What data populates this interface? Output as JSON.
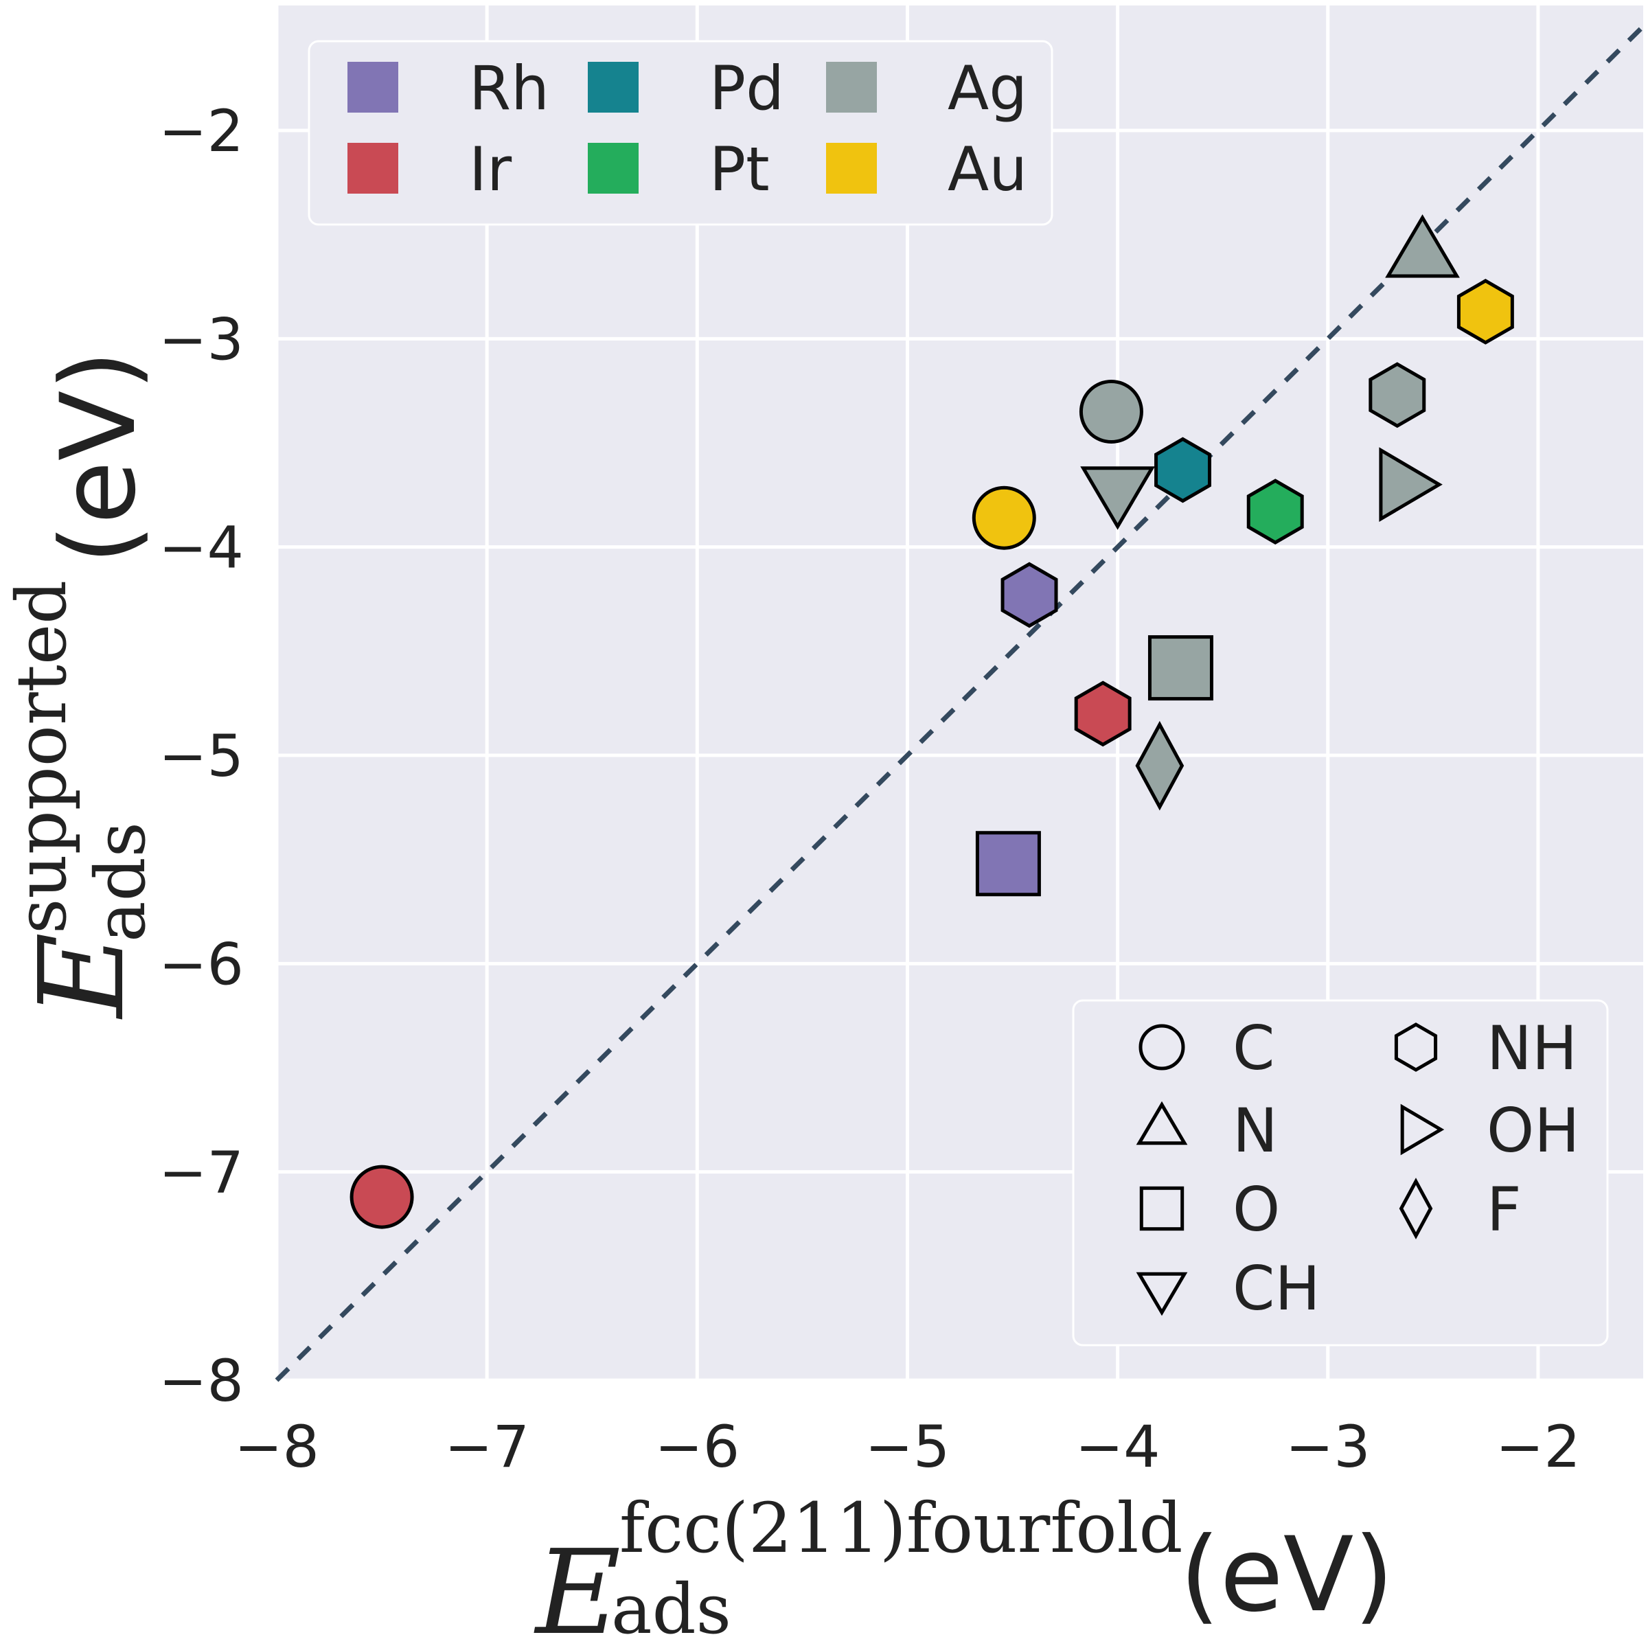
{
  "chart_data": {
    "type": "scatter",
    "x_axis": {
      "symbol": "E",
      "subscript": "ads",
      "superscript": "fcc(211)fourfold",
      "unit": "(eV)",
      "xlim": [
        -8,
        -1.5
      ],
      "ticks": [
        -8,
        -7,
        -6,
        -5,
        -4,
        -3,
        -2
      ],
      "tick_labels": [
        "−8",
        "−7",
        "−6",
        "−5",
        "−4",
        "−3",
        "−2"
      ]
    },
    "y_axis": {
      "symbol": "E",
      "subscript": "ads",
      "superscript": "supported",
      "unit": "(eV)",
      "ylim": [
        -8,
        -1.4
      ],
      "ticks": [
        -8,
        -7,
        -6,
        -5,
        -4,
        -3,
        -2
      ],
      "tick_labels": [
        "−8",
        "−7",
        "−6",
        "−5",
        "−4",
        "−3",
        "−2"
      ]
    },
    "grid": true,
    "parity_line": true,
    "metals": [
      {
        "name": "Rh",
        "color": "#8175b4"
      },
      {
        "name": "Ir",
        "color": "#c94a54"
      },
      {
        "name": "Pd",
        "color": "#15838f"
      },
      {
        "name": "Pt",
        "color": "#24ad5c"
      },
      {
        "name": "Ag",
        "color": "#97a5a3"
      },
      {
        "name": "Au",
        "color": "#f0c30f"
      }
    ],
    "adsorbates": [
      {
        "name": "C",
        "marker": "circle"
      },
      {
        "name": "N",
        "marker": "triangle-up"
      },
      {
        "name": "O",
        "marker": "square"
      },
      {
        "name": "CH",
        "marker": "triangle-down"
      },
      {
        "name": "NH",
        "marker": "hexagon"
      },
      {
        "name": "OH",
        "marker": "triangle-right"
      },
      {
        "name": "F",
        "marker": "diamond"
      }
    ],
    "points": [
      {
        "metal": "Ag",
        "adsorbate": "N",
        "x": -2.55,
        "y": -2.6
      },
      {
        "metal": "Au",
        "adsorbate": "NH",
        "x": -2.25,
        "y": -2.87
      },
      {
        "metal": "Ag",
        "adsorbate": "NH",
        "x": -2.67,
        "y": -3.27
      },
      {
        "metal": "Ag",
        "adsorbate": "OH",
        "x": -2.65,
        "y": -3.7
      },
      {
        "metal": "Ag",
        "adsorbate": "C",
        "x": -4.03,
        "y": -3.35
      },
      {
        "metal": "Pd",
        "adsorbate": "NH",
        "x": -3.69,
        "y": -3.63
      },
      {
        "metal": "Ag",
        "adsorbate": "CH",
        "x": -4.0,
        "y": -3.72
      },
      {
        "metal": "Pt",
        "adsorbate": "NH",
        "x": -3.25,
        "y": -3.83
      },
      {
        "metal": "Au",
        "adsorbate": "C",
        "x": -4.54,
        "y": -3.86
      },
      {
        "metal": "Rh",
        "adsorbate": "NH",
        "x": -4.42,
        "y": -4.23
      },
      {
        "metal": "Ag",
        "adsorbate": "O",
        "x": -3.7,
        "y": -4.58
      },
      {
        "metal": "Ir",
        "adsorbate": "NH",
        "x": -4.07,
        "y": -4.8
      },
      {
        "metal": "Ag",
        "adsorbate": "F",
        "x": -3.8,
        "y": -5.05
      },
      {
        "metal": "Rh",
        "adsorbate": "O",
        "x": -4.52,
        "y": -5.52
      },
      {
        "metal": "Ir",
        "adsorbate": "C",
        "x": -7.5,
        "y": -7.12
      }
    ]
  },
  "colors": {
    "plot_background": "#eaeaf2",
    "grid": "#ffffff",
    "parity_line": "#34495e",
    "marker_edge": "#000000",
    "text": "#222222"
  }
}
